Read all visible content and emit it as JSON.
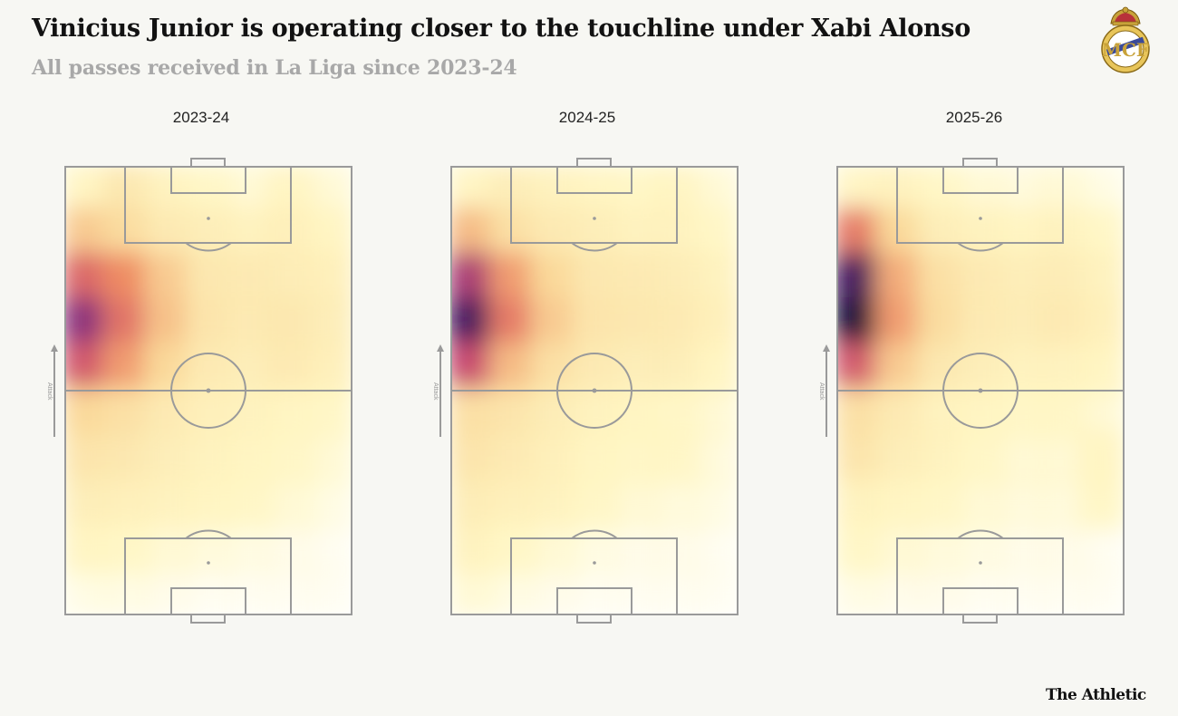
{
  "header": {
    "title": "Vinicius Junior is operating closer to the touchline under Xabi Alonso",
    "subtitle": "All passes received in La Liga since 2023-24"
  },
  "brand": "The Athletic",
  "crest_icon": "real-madrid-crest",
  "attack_label": "Attack",
  "colors": {
    "background": "#f7f7f3",
    "pitch_lines": "#9a9a9a",
    "heat_low": "#fff7c4",
    "heat_mid": "#f3a77a",
    "heat_high": "#c9405f",
    "heat_max": "#1b0a3d"
  },
  "chart_data": [
    {
      "type": "heatmap",
      "title": "2023-24",
      "attack_direction": "up",
      "note": "density values 0-1 on a 7-column (left to right) x 10-row (attacking end top) grid",
      "grid": [
        [
          0.1,
          0.2,
          0.12,
          0.08,
          0.06,
          0.1,
          0.06
        ],
        [
          0.35,
          0.28,
          0.18,
          0.15,
          0.12,
          0.14,
          0.1
        ],
        [
          0.65,
          0.55,
          0.35,
          0.2,
          0.18,
          0.16,
          0.14
        ],
        [
          0.85,
          0.62,
          0.38,
          0.22,
          0.18,
          0.2,
          0.15
        ],
        [
          0.7,
          0.5,
          0.3,
          0.18,
          0.15,
          0.18,
          0.14
        ],
        [
          0.3,
          0.25,
          0.18,
          0.14,
          0.12,
          0.1,
          0.08
        ],
        [
          0.22,
          0.2,
          0.15,
          0.12,
          0.1,
          0.08,
          0.06
        ],
        [
          0.15,
          0.14,
          0.12,
          0.1,
          0.08,
          0.06,
          0.04
        ],
        [
          0.1,
          0.08,
          0.06,
          0.05,
          0.04,
          0.03,
          0.02
        ],
        [
          0.04,
          0.04,
          0.03,
          0.02,
          0.02,
          0.02,
          0.02
        ]
      ]
    },
    {
      "type": "heatmap",
      "title": "2024-25",
      "attack_direction": "up",
      "note": "density values 0-1 on a 7-column (left to right) x 10-row (attacking end top) grid",
      "grid": [
        [
          0.1,
          0.15,
          0.12,
          0.1,
          0.08,
          0.1,
          0.06
        ],
        [
          0.4,
          0.25,
          0.18,
          0.15,
          0.12,
          0.12,
          0.08
        ],
        [
          0.8,
          0.5,
          0.3,
          0.2,
          0.18,
          0.16,
          0.12
        ],
        [
          0.95,
          0.6,
          0.35,
          0.22,
          0.2,
          0.18,
          0.14
        ],
        [
          0.75,
          0.4,
          0.25,
          0.18,
          0.15,
          0.15,
          0.1
        ],
        [
          0.25,
          0.22,
          0.16,
          0.12,
          0.1,
          0.08,
          0.06
        ],
        [
          0.22,
          0.18,
          0.14,
          0.1,
          0.08,
          0.08,
          0.05
        ],
        [
          0.16,
          0.14,
          0.12,
          0.08,
          0.06,
          0.05,
          0.04
        ],
        [
          0.12,
          0.08,
          0.06,
          0.04,
          0.03,
          0.03,
          0.02
        ],
        [
          0.06,
          0.04,
          0.03,
          0.02,
          0.02,
          0.02,
          0.02
        ]
      ]
    },
    {
      "type": "heatmap",
      "title": "2025-26",
      "attack_direction": "up",
      "note": "density values 0-1 on a 7-column (left to right) x 10-row (attacking end top) grid",
      "grid": [
        [
          0.1,
          0.12,
          0.08,
          0.06,
          0.05,
          0.06,
          0.04
        ],
        [
          0.6,
          0.3,
          0.15,
          0.12,
          0.1,
          0.12,
          0.08
        ],
        [
          0.95,
          0.45,
          0.25,
          0.18,
          0.15,
          0.16,
          0.12
        ],
        [
          1.0,
          0.5,
          0.28,
          0.18,
          0.16,
          0.18,
          0.14
        ],
        [
          0.7,
          0.35,
          0.2,
          0.15,
          0.12,
          0.12,
          0.1
        ],
        [
          0.25,
          0.18,
          0.12,
          0.1,
          0.08,
          0.08,
          0.06
        ],
        [
          0.22,
          0.15,
          0.12,
          0.08,
          0.06,
          0.06,
          0.1
        ],
        [
          0.12,
          0.1,
          0.08,
          0.06,
          0.05,
          0.05,
          0.08
        ],
        [
          0.08,
          0.06,
          0.05,
          0.04,
          0.03,
          0.03,
          0.02
        ],
        [
          0.04,
          0.03,
          0.03,
          0.02,
          0.02,
          0.02,
          0.02
        ]
      ]
    }
  ]
}
